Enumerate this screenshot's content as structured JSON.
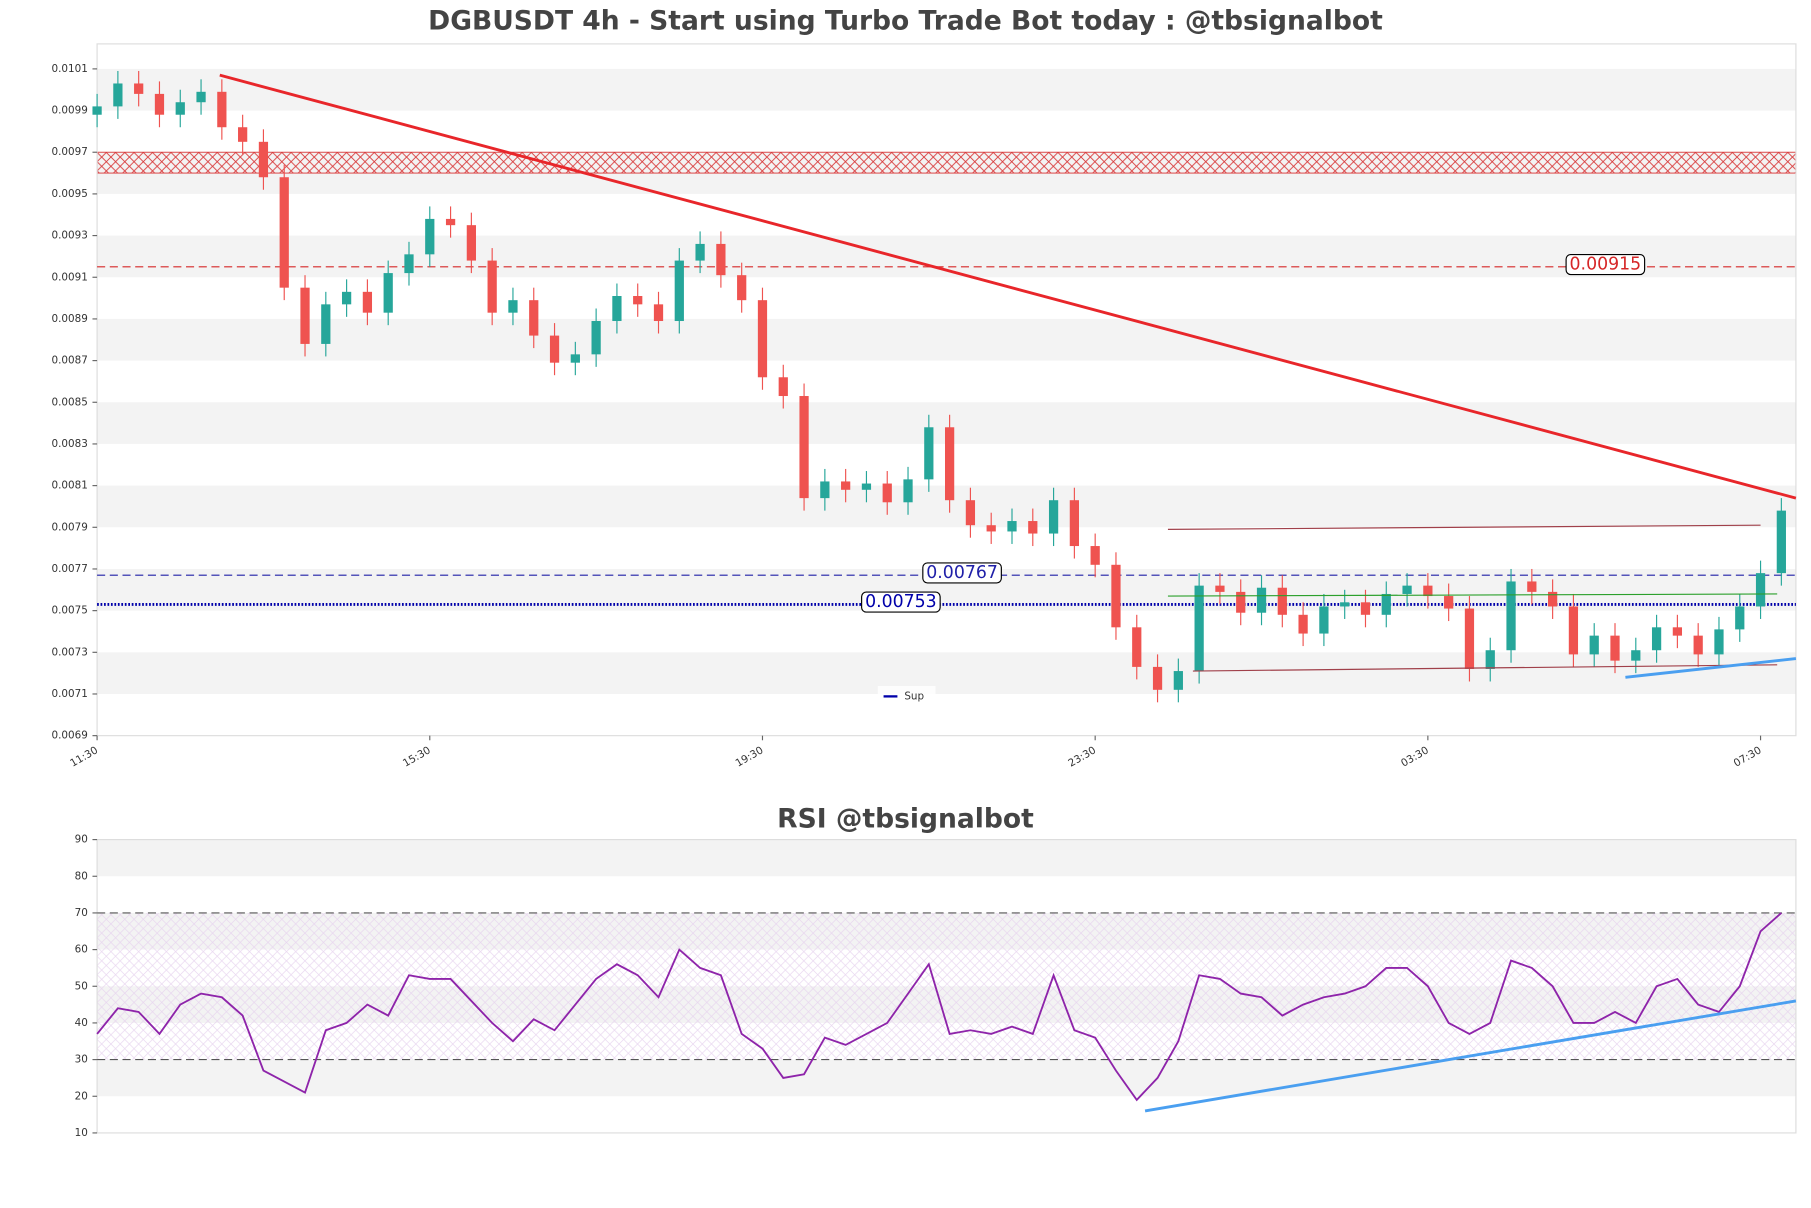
{
  "chart_data": [
    {
      "type": "candlestick",
      "title": "DGBUSDT 4h - Start using Turbo Trade Bot today : @tbsignalbot",
      "up_color": "#26a69a",
      "down_color": "#ef5350",
      "categories": [
        "11:30",
        null,
        null,
        null,
        null,
        null,
        null,
        null,
        null,
        null,
        null,
        null,
        null,
        null,
        null,
        null,
        "15:30",
        null,
        null,
        null,
        null,
        null,
        null,
        null,
        null,
        null,
        null,
        null,
        null,
        null,
        null,
        null,
        "19:30",
        null,
        null,
        null,
        null,
        null,
        null,
        null,
        null,
        null,
        null,
        null,
        null,
        null,
        null,
        null,
        "23:30",
        null,
        null,
        null,
        null,
        null,
        null,
        null,
        null,
        null,
        null,
        null,
        null,
        null,
        null,
        null,
        "03:30",
        null,
        null,
        null,
        null,
        null,
        null,
        null,
        null,
        null,
        null,
        null,
        null,
        null,
        null,
        null,
        "07:30",
        null
      ],
      "open": [
        0.00988,
        0.00992,
        0.01003,
        0.00998,
        0.00988,
        0.00994,
        0.00999,
        0.00982,
        0.00975,
        0.00958,
        0.00905,
        0.00878,
        0.00897,
        0.00903,
        0.00893,
        0.00912,
        0.00921,
        0.00938,
        0.00935,
        0.00918,
        0.00893,
        0.00899,
        0.00882,
        0.00869,
        0.00873,
        0.00889,
        0.00901,
        0.00897,
        0.00889,
        0.00918,
        0.00926,
        0.00911,
        0.00899,
        0.00862,
        0.00853,
        0.00804,
        0.00812,
        0.00808,
        0.00811,
        0.00802,
        0.00813,
        0.00838,
        0.00803,
        0.00791,
        0.00788,
        0.00793,
        0.00787,
        0.00803,
        0.00781,
        0.00772,
        0.00742,
        0.00723,
        0.00712,
        0.00721,
        0.00762,
        0.00759,
        0.00749,
        0.00761,
        0.00748,
        0.00739,
        0.00752,
        0.00754,
        0.00748,
        0.00758,
        0.00762,
        0.00757,
        0.00751,
        0.00722,
        0.00731,
        0.00764,
        0.00759,
        0.00752,
        0.00729,
        0.00738,
        0.00726,
        0.00731,
        0.00742,
        0.00738,
        0.00729,
        0.00741,
        0.00752,
        0.00768
      ],
      "high": [
        0.00998,
        0.01009,
        0.01009,
        0.01004,
        0.01,
        0.01005,
        0.01005,
        0.00988,
        0.00981,
        0.00964,
        0.00911,
        0.00903,
        0.00909,
        0.00909,
        0.00918,
        0.00927,
        0.00944,
        0.00944,
        0.00941,
        0.00924,
        0.00905,
        0.00905,
        0.00888,
        0.00879,
        0.00895,
        0.00907,
        0.00907,
        0.00903,
        0.00924,
        0.00932,
        0.00932,
        0.00917,
        0.00905,
        0.00868,
        0.00859,
        0.00818,
        0.00818,
        0.00817,
        0.00817,
        0.00819,
        0.00844,
        0.00844,
        0.00809,
        0.00797,
        0.00799,
        0.00799,
        0.00809,
        0.00809,
        0.00787,
        0.00778,
        0.00748,
        0.00729,
        0.00727,
        0.00768,
        0.00768,
        0.00765,
        0.00767,
        0.00767,
        0.00754,
        0.00758,
        0.0076,
        0.0076,
        0.00764,
        0.00768,
        0.00768,
        0.00763,
        0.00757,
        0.00737,
        0.0077,
        0.0077,
        0.00765,
        0.00758,
        0.00744,
        0.00744,
        0.00737,
        0.00748,
        0.00748,
        0.00744,
        0.00747,
        0.00758,
        0.00774,
        0.00804
      ],
      "low": [
        0.00982,
        0.00986,
        0.00992,
        0.00982,
        0.00982,
        0.00988,
        0.00976,
        0.00969,
        0.00952,
        0.00899,
        0.00872,
        0.00872,
        0.00891,
        0.00887,
        0.00887,
        0.00906,
        0.00915,
        0.00929,
        0.00912,
        0.00887,
        0.00887,
        0.00876,
        0.00863,
        0.00863,
        0.00867,
        0.00883,
        0.00891,
        0.00883,
        0.00883,
        0.00912,
        0.00905,
        0.00893,
        0.00856,
        0.00847,
        0.00798,
        0.00798,
        0.00802,
        0.00802,
        0.00796,
        0.00796,
        0.00807,
        0.00797,
        0.00785,
        0.00782,
        0.00782,
        0.00781,
        0.00781,
        0.00775,
        0.00766,
        0.00736,
        0.00717,
        0.00706,
        0.00706,
        0.00715,
        0.00753,
        0.00743,
        0.00743,
        0.00742,
        0.00733,
        0.00733,
        0.00746,
        0.00742,
        0.00742,
        0.00752,
        0.00751,
        0.00745,
        0.00716,
        0.00716,
        0.00725,
        0.00753,
        0.00746,
        0.00723,
        0.00723,
        0.0072,
        0.0072,
        0.00725,
        0.00732,
        0.00723,
        0.00723,
        0.00735,
        0.00746,
        0.00762
      ],
      "close": [
        0.00992,
        0.01003,
        0.00998,
        0.00988,
        0.00994,
        0.00999,
        0.00982,
        0.00975,
        0.00958,
        0.00905,
        0.00878,
        0.00897,
        0.00903,
        0.00893,
        0.00912,
        0.00921,
        0.00938,
        0.00935,
        0.00918,
        0.00893,
        0.00899,
        0.00882,
        0.00869,
        0.00873,
        0.00889,
        0.00901,
        0.00897,
        0.00889,
        0.00918,
        0.00926,
        0.00911,
        0.00899,
        0.00862,
        0.00853,
        0.00804,
        0.00812,
        0.00808,
        0.00811,
        0.00802,
        0.00813,
        0.00838,
        0.00803,
        0.00791,
        0.00788,
        0.00793,
        0.00787,
        0.00803,
        0.00781,
        0.00772,
        0.00742,
        0.00723,
        0.00712,
        0.00721,
        0.00762,
        0.00759,
        0.00749,
        0.00761,
        0.00748,
        0.00739,
        0.00752,
        0.00754,
        0.00748,
        0.00758,
        0.00762,
        0.00757,
        0.00751,
        0.00722,
        0.00731,
        0.00764,
        0.00759,
        0.00752,
        0.00729,
        0.00738,
        0.00726,
        0.00731,
        0.00742,
        0.00738,
        0.00729,
        0.00741,
        0.00752,
        0.00768,
        0.00798
      ],
      "xlim": [
        0,
        81.7
      ],
      "ylim": [
        0.0069,
        0.01022
      ],
      "yticks": [
        0.0069,
        0.0071,
        0.0073,
        0.0075,
        0.0077,
        0.0079,
        0.0081,
        0.0083,
        0.0085,
        0.0087,
        0.0089,
        0.0091,
        0.0093,
        0.0095,
        0.0097,
        0.0099,
        0.0101
      ],
      "zone": [
        0.0096,
        0.0097
      ],
      "zone_color": "#d62728",
      "levels": [
        {
          "value": 0.00915,
          "color": "#d62728",
          "style": "dashed"
        },
        {
          "value": 0.00767,
          "color": "#1f1fa8",
          "style": "dashed"
        },
        {
          "value": 0.00753,
          "color": "#0000aa",
          "style": "dotted",
          "name": "Sup"
        }
      ],
      "trend_lines": [
        {
          "x": [
            5.9,
            81.7
          ],
          "y": [
            0.01007,
            0.00804
          ],
          "color": "#e8262a",
          "width": 2.5
        },
        {
          "x": [
            51.5,
            80
          ],
          "y": [
            0.00789,
            0.00791
          ],
          "color": "#a0404a",
          "width": 1
        },
        {
          "x": [
            52.7,
            80.8
          ],
          "y": [
            0.00721,
            0.00724
          ],
          "color": "#a0404a",
          "width": 1
        },
        {
          "x": [
            51.5,
            80.8
          ],
          "y": [
            0.00757,
            0.00758
          ],
          "color": "#2ca02c",
          "width": 1
        },
        {
          "x": [
            73.5,
            81.7
          ],
          "y": [
            0.00718,
            0.00727
          ],
          "color": "#4a9ff0",
          "width": 2.5
        }
      ]
    },
    {
      "type": "line",
      "title": "RSI @tbsignalbot",
      "color": "#8e24aa",
      "values": [
        37,
        44,
        43,
        37,
        45,
        48,
        47,
        42,
        27,
        24,
        21,
        38,
        40,
        45,
        42,
        53,
        52,
        52,
        46,
        40,
        35,
        41,
        38,
        45,
        52,
        56,
        53,
        47,
        60,
        55,
        53,
        37,
        33,
        25,
        26,
        36,
        34,
        37,
        40,
        48,
        56,
        37,
        38,
        37,
        39,
        37,
        53,
        38,
        36,
        27,
        19,
        25,
        35,
        53,
        52,
        48,
        47,
        42,
        45,
        47,
        48,
        50,
        55,
        55,
        50,
        40,
        37,
        40,
        57,
        55,
        50,
        40,
        40,
        43,
        40,
        50,
        52,
        45,
        43,
        50,
        65,
        70
      ],
      "xlim": [
        0,
        81.7
      ],
      "ylim": [
        10,
        90
      ],
      "yticks": [
        10,
        20,
        30,
        40,
        50,
        60,
        70,
        80,
        90
      ],
      "zone": [
        30,
        70
      ],
      "zone_color": "#c9a0dc",
      "levels": [
        {
          "value": 30,
          "color": "#555",
          "style": "dashed"
        },
        {
          "value": 70,
          "color": "#555",
          "style": "dashed"
        }
      ],
      "trend_lines": [
        {
          "x": [
            50.4,
            81.7
          ],
          "y": [
            16,
            46
          ],
          "color": "#4a9ff0",
          "width": 2.5
        }
      ]
    }
  ]
}
